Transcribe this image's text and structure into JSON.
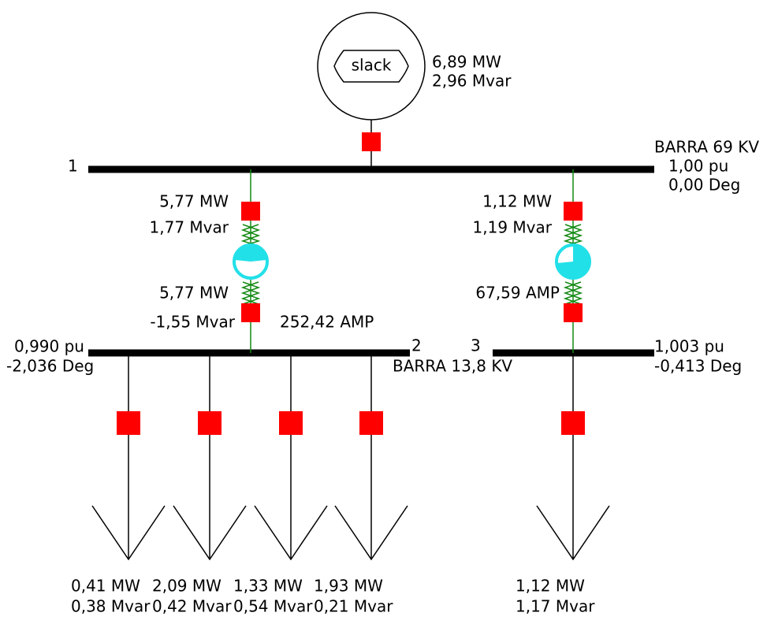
{
  "generator": {
    "label": "slack",
    "mw": "6,89 MW",
    "mvar": "2,96 Mvar"
  },
  "buses": [
    {
      "number": "1",
      "name": "BARRA 69 KV",
      "pu": "1,00 pu",
      "deg": "0,00 Deg"
    },
    {
      "number": "2",
      "name": "BARRA 13,8 KV",
      "pu": "0,990 pu",
      "deg": "-2,036 Deg"
    },
    {
      "number": "3",
      "pu": "1,003 pu",
      "deg": "-0,413 Deg"
    }
  ],
  "branches": [
    {
      "from_mw": "5,77 MW",
      "from_mvar": "1,77 Mvar",
      "to_mw": "5,77 MW",
      "to_mvar": "-1,55 Mvar",
      "amps": "252,42 AMP"
    },
    {
      "from_mw": "1,12 MW",
      "from_mvar": "1,19 Mvar",
      "amps": "67,59 AMP"
    }
  ],
  "loads": [
    {
      "mw": "0,41 MW",
      "mvar": "0,38 Mvar"
    },
    {
      "mw": "2,09 MW",
      "mvar": "0,42 Mvar"
    },
    {
      "mw": "1,33 MW",
      "mvar": "0,54 Mvar"
    },
    {
      "mw": "1,93 MW",
      "mvar": "0,21 Mvar"
    },
    {
      "mw": "1,12 MW",
      "mvar": "1,17 Mvar"
    }
  ]
}
